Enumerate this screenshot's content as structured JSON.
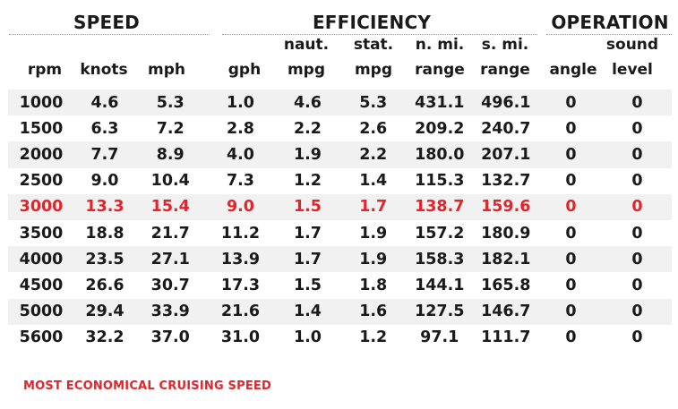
{
  "groups": {
    "speed": "SPEED",
    "efficiency": "EFFICIENCY",
    "operation": "OPERATION"
  },
  "headers": {
    "line1": [
      "",
      "",
      "",
      "",
      "naut.",
      "stat.",
      "n. mi.",
      "s. mi.",
      "",
      "sound"
    ],
    "line2": [
      "rpm",
      "knots",
      "mph",
      "gph",
      "mpg",
      "mpg",
      "range",
      "range",
      "angle",
      "level"
    ]
  },
  "rows": [
    [
      "1000",
      "4.6",
      "5.3",
      "1.0",
      "4.6",
      "5.3",
      "431.1",
      "496.1",
      "0",
      "0"
    ],
    [
      "1500",
      "6.3",
      "7.2",
      "2.8",
      "2.2",
      "2.6",
      "209.2",
      "240.7",
      "0",
      "0"
    ],
    [
      "2000",
      "7.7",
      "8.9",
      "4.0",
      "1.9",
      "2.2",
      "180.0",
      "207.1",
      "0",
      "0"
    ],
    [
      "2500",
      "9.0",
      "10.4",
      "7.3",
      "1.2",
      "1.4",
      "115.3",
      "132.7",
      "0",
      "0"
    ],
    [
      "3000",
      "13.3",
      "15.4",
      "9.0",
      "1.5",
      "1.7",
      "138.7",
      "159.6",
      "0",
      "0"
    ],
    [
      "3500",
      "18.8",
      "21.7",
      "11.2",
      "1.7",
      "1.9",
      "157.2",
      "180.9",
      "0",
      "0"
    ],
    [
      "4000",
      "23.5",
      "27.1",
      "13.9",
      "1.7",
      "1.9",
      "158.3",
      "182.1",
      "0",
      "0"
    ],
    [
      "4500",
      "26.6",
      "30.7",
      "17.3",
      "1.5",
      "1.8",
      "144.1",
      "165.8",
      "0",
      "0"
    ],
    [
      "5000",
      "29.4",
      "33.9",
      "21.6",
      "1.4",
      "1.6",
      "127.5",
      "146.7",
      "0",
      "0"
    ],
    [
      "5600",
      "32.2",
      "37.0",
      "31.0",
      "1.0",
      "1.2",
      "97.1",
      "111.7",
      "0",
      "0"
    ]
  ],
  "highlight_row_index": 4,
  "highlight_color": "#e3242b",
  "text_color": "#1a1a1a",
  "row_stripe_color": "#f1f1f1",
  "footnote": "MOST ECONOMICAL CRUISING SPEED"
}
